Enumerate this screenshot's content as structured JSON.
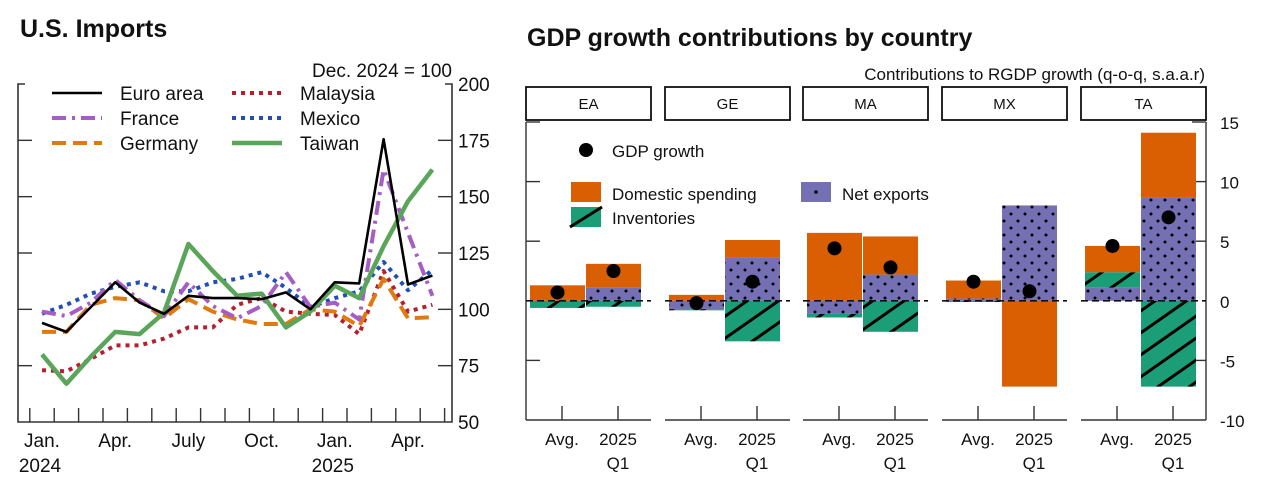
{
  "chart_data": [
    {
      "type": "line",
      "title": "U.S. Imports",
      "subtitle": "Dec. 2024 = 100",
      "xlabel": "",
      "ylabel": "",
      "ylim": [
        50,
        200
      ],
      "yticks": [
        "50",
        "75",
        "100",
        "125",
        "150",
        "175",
        "200"
      ],
      "ytick_values": [
        50,
        75,
        100,
        125,
        150,
        175,
        200
      ],
      "y_axis_side": "right",
      "x": [
        "2024-01",
        "2024-02",
        "2024-03",
        "2024-04",
        "2024-05",
        "2024-06",
        "2024-07",
        "2024-08",
        "2024-09",
        "2024-10",
        "2024-11",
        "2024-12",
        "2025-01",
        "2025-02",
        "2025-03",
        "2025-04",
        "2025-05"
      ],
      "xtick_labels": [
        {
          "index": 0,
          "line1": "Jan.",
          "line2": "2024"
        },
        {
          "index": 3,
          "line1": "Apr.",
          "line2": ""
        },
        {
          "index": 6,
          "line1": "July",
          "line2": ""
        },
        {
          "index": 9,
          "line1": "Oct.",
          "line2": ""
        },
        {
          "index": 12,
          "line1": "Jan.",
          "line2": "2025"
        },
        {
          "index": 15,
          "line1": "Apr.",
          "line2": ""
        }
      ],
      "legend_position": "top-left",
      "series": [
        {
          "name": "Euro area",
          "color": "#000000",
          "style": "solid",
          "values": [
            94,
            90,
            101,
            112,
            103,
            98,
            106,
            105,
            105,
            104.5,
            107.5,
            100,
            112,
            111.5,
            175.5,
            111,
            115
          ]
        },
        {
          "name": "France",
          "color": "#a65dc4",
          "style": "dashdot",
          "values": [
            99,
            97,
            103,
            113,
            104,
            97,
            112,
            101.5,
            96,
            101.5,
            116.5,
            101,
            103,
            95.5,
            162,
            134,
            106
          ]
        },
        {
          "name": "Germany",
          "color": "#e07a10",
          "style": "dashed",
          "values": [
            90,
            90,
            102,
            105,
            104,
            96,
            104.5,
            99,
            95.5,
            93.5,
            93.5,
            100,
            99,
            92.5,
            113.5,
            96,
            96.5
          ]
        },
        {
          "name": "Malaysia",
          "color": "#b5202e",
          "style": "dotted",
          "values": [
            73,
            72.5,
            78,
            84,
            84,
            87,
            92,
            92,
            102,
            105,
            99,
            98,
            97.5,
            89,
            117,
            99,
            102
          ]
        },
        {
          "name": "Mexico",
          "color": "#1f4fb8",
          "style": "dotted",
          "values": [
            98,
            102,
            107,
            110,
            112,
            108,
            108,
            112,
            113.5,
            116.5,
            109.5,
            101,
            105,
            108,
            121,
            108.5,
            117.5
          ]
        },
        {
          "name": "Taiwan",
          "color": "#5aa55a",
          "style": "solid-thick",
          "values": [
            80,
            67,
            79,
            90,
            89,
            98.5,
            129,
            117,
            106,
            107,
            92,
            99,
            110.5,
            105,
            128,
            148,
            162
          ]
        }
      ]
    },
    {
      "type": "bar",
      "stacked": true,
      "title": "GDP growth contributions by country",
      "subtitle": "Contributions to RGDP growth (q-o-q, s.a.a.r)",
      "ylim": [
        -10,
        15
      ],
      "yticks": [
        "-10",
        "-5",
        "0",
        "5",
        "10",
        "15"
      ],
      "ytick_values": [
        -10,
        -5,
        0,
        5,
        10,
        15
      ],
      "y_axis_side": "right",
      "panels": [
        "EA",
        "GE",
        "MA",
        "MX",
        "TA"
      ],
      "categories": [
        "Avg.",
        "2025 Q1"
      ],
      "category_labels": [
        {
          "line1": "Avg.",
          "line2": ""
        },
        {
          "line1": "2025",
          "line2": "Q1"
        }
      ],
      "legend_position": "top-left",
      "series": [
        {
          "name": "Domestic spending",
          "color": "#d95f02",
          "pattern": "none",
          "values": {
            "EA": [
              1.3,
              2.0
            ],
            "GE": [
              0.5,
              1.5
            ],
            "MA": [
              5.7,
              3.2
            ],
            "MX": [
              1.5,
              -7.2
            ],
            "TA": [
              2.2,
              5.4
            ]
          }
        },
        {
          "name": "Net exports",
          "color": "#7570b3",
          "pattern": "dots",
          "values": {
            "EA": [
              0.0,
              1.1
            ],
            "GE": [
              -0.7,
              3.6
            ],
            "MA": [
              -1.1,
              2.2
            ],
            "MX": [
              0.2,
              8.0
            ],
            "TA": [
              1.1,
              8.7
            ]
          }
        },
        {
          "name": "Inventories",
          "color": "#1b9e77",
          "pattern": "hatch",
          "values": {
            "EA": [
              -0.6,
              -0.5
            ],
            "GE": [
              -0.1,
              -3.4
            ],
            "MA": [
              -0.3,
              -2.6
            ],
            "MX": [
              -0.1,
              0.0
            ],
            "TA": [
              1.3,
              -7.2
            ]
          }
        }
      ],
      "points": {
        "name": "GDP growth",
        "color": "#000000",
        "values": {
          "EA": [
            0.7,
            2.5
          ],
          "GE": [
            -0.2,
            1.6
          ],
          "MA": [
            4.4,
            2.8
          ],
          "MX": [
            1.6,
            0.8
          ],
          "TA": [
            4.6,
            7.0
          ]
        }
      }
    }
  ]
}
